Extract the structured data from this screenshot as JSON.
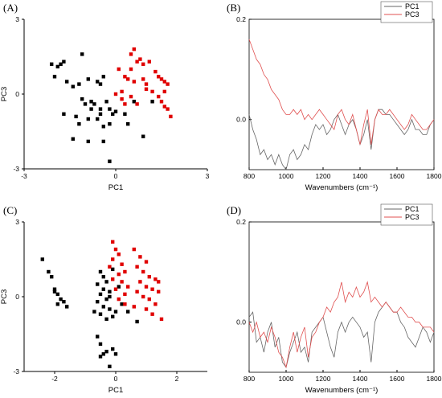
{
  "panels": {
    "A": {
      "label": "(A)"
    },
    "B": {
      "label": "(B)"
    },
    "C": {
      "label": "(C)"
    },
    "D": {
      "label": "(D)"
    }
  },
  "colors": {
    "group1": "#000000",
    "group2": "#e00000",
    "pc1_line": "#666666",
    "pc3_line": "#e05050"
  },
  "chart_data": [
    {
      "id": "A",
      "type": "scatter",
      "xlabel": "PC1",
      "ylabel": "PC3",
      "xlim": [
        -3,
        3
      ],
      "ylim": [
        -3,
        3
      ],
      "xticks": [
        "-3",
        "0",
        "3"
      ],
      "yticks": [
        "3",
        "0",
        "-3"
      ],
      "series": [
        {
          "color": "#000000",
          "points": [
            [
              -2.1,
              1.2
            ],
            [
              -1.9,
              1.1
            ],
            [
              -1.8,
              1.2
            ],
            [
              -2.0,
              0.7
            ],
            [
              -1.7,
              1.3
            ],
            [
              -1.1,
              1.6
            ],
            [
              -1.4,
              0.3
            ],
            [
              -1.6,
              0.5
            ],
            [
              -1.2,
              0.4
            ],
            [
              -0.9,
              0.6
            ],
            [
              -0.6,
              0.5
            ],
            [
              -0.4,
              0.7
            ],
            [
              -0.5,
              0.4
            ],
            [
              -1.0,
              -0.4
            ],
            [
              -1.1,
              -0.2
            ],
            [
              -0.8,
              -0.3
            ],
            [
              -0.8,
              -0.6
            ],
            [
              -1.3,
              -0.9
            ],
            [
              -1.7,
              -0.8
            ],
            [
              -1.2,
              -1.2
            ],
            [
              -0.9,
              -1.0
            ],
            [
              -0.6,
              -1.0
            ],
            [
              -0.5,
              -0.8
            ],
            [
              -0.7,
              -0.4
            ],
            [
              -0.5,
              -0.6
            ],
            [
              -0.2,
              -0.6
            ],
            [
              -0.1,
              -0.8
            ],
            [
              -0.3,
              -0.3
            ],
            [
              -1.4,
              -1.8
            ],
            [
              -0.9,
              -1.9
            ],
            [
              -0.4,
              -1.3
            ],
            [
              -0.2,
              -1.2
            ],
            [
              0.0,
              -0.7
            ],
            [
              0.3,
              -0.8
            ],
            [
              0.4,
              -1.2
            ],
            [
              -0.4,
              -1.9
            ],
            [
              -0.2,
              -2.7
            ],
            [
              0.6,
              -0.3
            ],
            [
              1.2,
              -0.3
            ],
            [
              0.9,
              -1.7
            ]
          ]
        },
        {
          "color": "#e00000",
          "points": [
            [
              0.1,
              1.0
            ],
            [
              0.3,
              0.7
            ],
            [
              0.5,
              1.6
            ],
            [
              0.6,
              1.8
            ],
            [
              0.8,
              1.4
            ],
            [
              0.9,
              1.2
            ],
            [
              1.1,
              1.3
            ],
            [
              0.7,
              1.3
            ],
            [
              0.5,
              1.0
            ],
            [
              0.4,
              0.6
            ],
            [
              0.6,
              0.5
            ],
            [
              0.9,
              0.6
            ],
            [
              1.3,
              0.9
            ],
            [
              1.4,
              0.7
            ],
            [
              1.5,
              0.6
            ],
            [
              1.6,
              0.5
            ],
            [
              1.7,
              0.4
            ],
            [
              0.2,
              0.1
            ],
            [
              0.0,
              0.0
            ],
            [
              0.2,
              -0.2
            ],
            [
              0.5,
              -0.1
            ],
            [
              0.7,
              -0.4
            ],
            [
              1.0,
              0.2
            ],
            [
              1.2,
              0.1
            ],
            [
              1.4,
              -0.1
            ],
            [
              1.5,
              -0.3
            ],
            [
              1.6,
              -0.5
            ],
            [
              1.7,
              -0.6
            ],
            [
              1.6,
              0.1
            ],
            [
              1.8,
              -0.9
            ],
            [
              0.3,
              -0.4
            ],
            [
              1.0,
              0.4
            ]
          ]
        }
      ]
    },
    {
      "id": "B",
      "type": "line",
      "xlabel": "Wavenumbers (cm⁻¹)",
      "xlim": [
        800,
        1800
      ],
      "ylim": [
        -0.1,
        0.2
      ],
      "xticks": [
        "800",
        "1000",
        "1200",
        "1400",
        "1600",
        "1800"
      ],
      "yticks": [
        "0.2",
        "0.0"
      ],
      "legend_position": "top-right",
      "series": [
        {
          "name": "PC1",
          "color": "#666666",
          "x": [
            800,
            820,
            840,
            860,
            880,
            900,
            920,
            940,
            960,
            980,
            1000,
            1020,
            1040,
            1060,
            1080,
            1100,
            1120,
            1140,
            1160,
            1180,
            1200,
            1220,
            1240,
            1260,
            1280,
            1300,
            1320,
            1340,
            1360,
            1380,
            1400,
            1420,
            1440,
            1460,
            1480,
            1500,
            1520,
            1540,
            1560,
            1580,
            1600,
            1620,
            1640,
            1660,
            1680,
            1700,
            1720,
            1740,
            1760,
            1780,
            1800
          ],
          "y": [
            0.01,
            -0.02,
            -0.04,
            -0.07,
            -0.06,
            -0.08,
            -0.07,
            -0.09,
            -0.07,
            -0.09,
            -0.1,
            -0.07,
            -0.06,
            -0.08,
            -0.07,
            -0.05,
            -0.06,
            -0.03,
            -0.01,
            -0.02,
            -0.01,
            -0.03,
            -0.02,
            0.0,
            0.01,
            -0.01,
            -0.03,
            -0.01,
            0.0,
            -0.02,
            -0.05,
            -0.03,
            0.0,
            -0.06,
            0.0,
            0.02,
            0.02,
            0.01,
            0.01,
            0.0,
            -0.01,
            -0.02,
            -0.03,
            -0.02,
            0.0,
            -0.02,
            -0.02,
            -0.03,
            -0.03,
            -0.01,
            0.0
          ]
        },
        {
          "name": "PC3",
          "color": "#e05050",
          "x": [
            800,
            820,
            840,
            860,
            880,
            900,
            920,
            940,
            960,
            980,
            1000,
            1020,
            1040,
            1060,
            1080,
            1100,
            1120,
            1140,
            1160,
            1180,
            1200,
            1220,
            1240,
            1260,
            1280,
            1300,
            1320,
            1340,
            1360,
            1380,
            1400,
            1420,
            1440,
            1460,
            1480,
            1500,
            1520,
            1540,
            1560,
            1580,
            1600,
            1620,
            1640,
            1660,
            1680,
            1700,
            1720,
            1740,
            1760,
            1780,
            1800
          ],
          "y": [
            0.16,
            0.14,
            0.12,
            0.11,
            0.09,
            0.08,
            0.06,
            0.05,
            0.04,
            0.02,
            0.01,
            0.01,
            0.02,
            0.01,
            0.02,
            0.0,
            0.01,
            0.0,
            0.01,
            0.02,
            0.01,
            0.0,
            -0.01,
            -0.02,
            0.01,
            0.02,
            0.0,
            -0.01,
            0.01,
            -0.02,
            -0.05,
            -0.01,
            0.02,
            -0.05,
            0.0,
            0.02,
            0.01,
            0.01,
            0.02,
            0.01,
            0.0,
            -0.01,
            -0.02,
            -0.01,
            0.01,
            0.0,
            -0.01,
            -0.02,
            -0.02,
            -0.01,
            0.0
          ]
        }
      ]
    },
    {
      "id": "C",
      "type": "scatter",
      "xlabel": "PC1",
      "ylabel": "PC3",
      "xlim": [
        -3,
        3
      ],
      "ylim": [
        -3,
        3
      ],
      "xticks": [
        "-2",
        "0",
        "2"
      ],
      "yticks": [
        "3",
        "0",
        "-3"
      ],
      "series": [
        {
          "color": "#000000",
          "points": [
            [
              -2.4,
              1.5
            ],
            [
              -2.2,
              1.0
            ],
            [
              -2.1,
              0.8
            ],
            [
              -2.0,
              0.3
            ],
            [
              -1.9,
              0.1
            ],
            [
              -1.8,
              -0.1
            ],
            [
              -1.7,
              -0.2
            ],
            [
              -1.6,
              -0.4
            ],
            [
              -1.9,
              -0.3
            ],
            [
              -2.0,
              0.2
            ],
            [
              -0.5,
              1.0
            ],
            [
              -0.4,
              0.8
            ],
            [
              -0.3,
              0.6
            ],
            [
              -0.6,
              0.5
            ],
            [
              -0.4,
              0.3
            ],
            [
              -0.2,
              0.2
            ],
            [
              -0.5,
              0.1
            ],
            [
              -0.3,
              -0.1
            ],
            [
              -0.6,
              -0.2
            ],
            [
              -0.4,
              -0.4
            ],
            [
              -0.2,
              -0.5
            ],
            [
              -0.5,
              -0.7
            ],
            [
              -0.7,
              -0.6
            ],
            [
              -0.3,
              -0.9
            ],
            [
              -0.1,
              -0.8
            ],
            [
              0.0,
              -0.6
            ],
            [
              -0.2,
              0.0
            ],
            [
              0.1,
              0.4
            ],
            [
              -0.1,
              1.1
            ],
            [
              0.2,
              -0.3
            ],
            [
              -0.6,
              -1.6
            ],
            [
              -0.5,
              -1.9
            ],
            [
              -0.4,
              -2.3
            ],
            [
              -0.3,
              -2.2
            ],
            [
              -0.5,
              -2.4
            ],
            [
              -0.1,
              -2.1
            ],
            [
              0.0,
              -2.3
            ],
            [
              -0.2,
              -2.8
            ],
            [
              0.4,
              -0.6
            ],
            [
              0.7,
              -1.0
            ]
          ]
        },
        {
          "color": "#e00000",
          "points": [
            [
              -0.1,
              2.2
            ],
            [
              0.0,
              1.9
            ],
            [
              0.1,
              1.7
            ],
            [
              -0.1,
              1.5
            ],
            [
              0.2,
              1.3
            ],
            [
              -0.2,
              1.2
            ],
            [
              0.3,
              1.0
            ],
            [
              0.1,
              0.9
            ],
            [
              -0.1,
              0.7
            ],
            [
              0.2,
              0.6
            ],
            [
              0.4,
              0.4
            ],
            [
              0.0,
              0.3
            ],
            [
              0.3,
              0.1
            ],
            [
              0.1,
              -0.1
            ],
            [
              0.3,
              -0.3
            ],
            [
              0.6,
              1.9
            ],
            [
              0.8,
              1.6
            ],
            [
              1.0,
              1.4
            ],
            [
              0.7,
              1.2
            ],
            [
              0.9,
              1.0
            ],
            [
              1.1,
              0.8
            ],
            [
              1.3,
              0.7
            ],
            [
              0.8,
              0.6
            ],
            [
              1.0,
              0.4
            ],
            [
              1.2,
              0.3
            ],
            [
              1.4,
              0.2
            ],
            [
              0.7,
              0.2
            ],
            [
              0.9,
              0.0
            ],
            [
              1.1,
              -0.1
            ],
            [
              1.3,
              -0.3
            ],
            [
              1.0,
              -0.5
            ],
            [
              1.2,
              -0.7
            ],
            [
              1.5,
              -0.9
            ],
            [
              0.6,
              -0.4
            ],
            [
              1.4,
              0.6
            ]
          ]
        }
      ]
    },
    {
      "id": "D",
      "type": "line",
      "xlabel": "Wavenumbers (cm⁻¹)",
      "xlim": [
        800,
        1800
      ],
      "ylim": [
        -0.1,
        0.2
      ],
      "xticks": [
        "800",
        "1000",
        "1200",
        "1400",
        "1600",
        "1800"
      ],
      "yticks": [
        "0.2",
        "0.0"
      ],
      "legend_position": "top-right",
      "series": [
        {
          "name": "PC1",
          "color": "#666666",
          "x": [
            800,
            820,
            840,
            860,
            880,
            900,
            920,
            940,
            960,
            980,
            1000,
            1020,
            1040,
            1060,
            1080,
            1100,
            1120,
            1140,
            1160,
            1180,
            1200,
            1220,
            1240,
            1260,
            1280,
            1300,
            1320,
            1340,
            1360,
            1380,
            1400,
            1420,
            1440,
            1460,
            1480,
            1500,
            1520,
            1540,
            1560,
            1580,
            1600,
            1620,
            1640,
            1660,
            1680,
            1700,
            1720,
            1740,
            1760,
            1780,
            1800
          ],
          "y": [
            0.01,
            0.02,
            -0.04,
            -0.03,
            -0.06,
            -0.02,
            0.0,
            -0.05,
            -0.03,
            -0.08,
            -0.09,
            -0.06,
            -0.04,
            -0.02,
            -0.06,
            -0.05,
            -0.08,
            -0.02,
            -0.01,
            0.0,
            0.01,
            -0.02,
            -0.05,
            -0.07,
            -0.02,
            0.0,
            -0.02,
            0.0,
            0.01,
            0.0,
            -0.01,
            -0.03,
            -0.02,
            -0.08,
            0.0,
            0.02,
            0.03,
            0.04,
            0.03,
            0.02,
            0.02,
            0.0,
            -0.01,
            -0.03,
            -0.04,
            -0.05,
            -0.03,
            -0.01,
            -0.02,
            -0.04,
            -0.02
          ]
        },
        {
          "name": "PC3",
          "color": "#e05050",
          "x": [
            800,
            820,
            840,
            860,
            880,
            900,
            920,
            940,
            960,
            980,
            1000,
            1020,
            1040,
            1060,
            1080,
            1100,
            1120,
            1140,
            1160,
            1180,
            1200,
            1220,
            1240,
            1260,
            1280,
            1300,
            1320,
            1340,
            1360,
            1380,
            1400,
            1420,
            1440,
            1460,
            1480,
            1500,
            1520,
            1540,
            1560,
            1580,
            1600,
            1620,
            1640,
            1660,
            1680,
            1700,
            1720,
            1740,
            1760,
            1780,
            1800
          ],
          "y": [
            0.0,
            -0.02,
            0.0,
            -0.03,
            -0.02,
            -0.04,
            -0.01,
            -0.03,
            -0.06,
            -0.07,
            -0.09,
            -0.05,
            -0.02,
            -0.06,
            -0.03,
            -0.01,
            -0.07,
            -0.03,
            -0.02,
            0.0,
            0.01,
            0.03,
            0.02,
            0.04,
            0.05,
            0.08,
            0.04,
            0.06,
            0.05,
            0.07,
            0.05,
            0.06,
            0.08,
            0.04,
            0.05,
            0.04,
            0.03,
            0.04,
            0.03,
            0.02,
            0.02,
            0.03,
            0.02,
            0.01,
            0.01,
            0.0,
            0.0,
            -0.01,
            -0.01,
            -0.01,
            -0.02
          ]
        }
      ]
    }
  ]
}
